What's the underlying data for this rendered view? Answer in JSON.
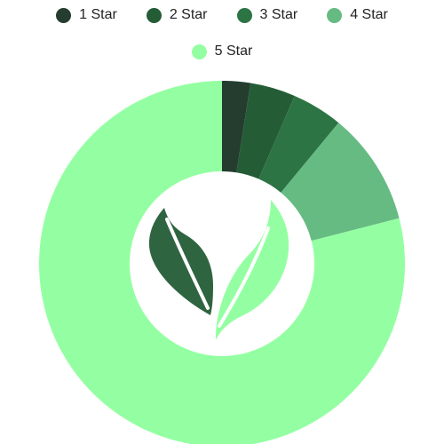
{
  "chart_data": {
    "type": "pie",
    "categories": [
      "1 Star",
      "2 Star",
      "3 Star",
      "4 Star",
      "5 Star"
    ],
    "values": [
      2.5,
      4,
      4.5,
      10,
      79
    ],
    "colors": [
      "#243d2f",
      "#245c36",
      "#2c7444",
      "#66bb83",
      "#94ffa2"
    ],
    "legend_position": "top",
    "center_icon": "leaf-logo",
    "leaf_colors": [
      "#2f6440",
      "#94ffa2"
    ]
  }
}
